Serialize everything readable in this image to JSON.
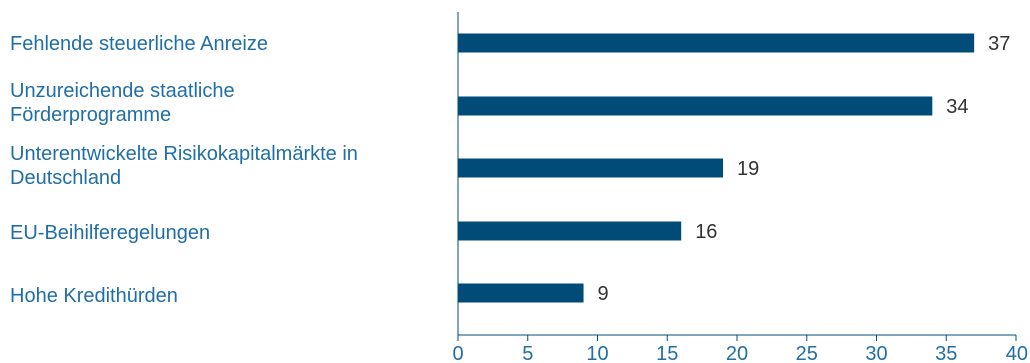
{
  "chart_data": {
    "type": "bar",
    "orientation": "horizontal",
    "categories": [
      "Fehlende steuerliche Anreize",
      "Unzureichende staatliche Förderprogramme",
      "Unterentwickelte Risikokapitalmärkte in Deutschland",
      "EU-Beihilferegelungen",
      "Hohe Kredithürden"
    ],
    "category_lines": [
      [
        "Fehlende steuerliche Anreize"
      ],
      [
        "Unzureichende staatliche",
        "Förderprogramme"
      ],
      [
        "Unterentwickelte Risikokapitalmärkte in",
        "Deutschland"
      ],
      [
        "EU-Beihilferegelungen"
      ],
      [
        "Hohe Kredithürden"
      ]
    ],
    "values": [
      37,
      34,
      19,
      16,
      9
    ],
    "xlim": [
      0,
      40
    ],
    "xticks": [
      0,
      5,
      10,
      15,
      20,
      25,
      30,
      35,
      40
    ],
    "title": "",
    "xlabel": "",
    "ylabel": "",
    "grid": false,
    "colors": {
      "bar": "#004b78",
      "category_label": "#1f6fa6",
      "value_label": "#333333",
      "axis": "#004b78",
      "tick_label": "#1f6fa6"
    }
  }
}
